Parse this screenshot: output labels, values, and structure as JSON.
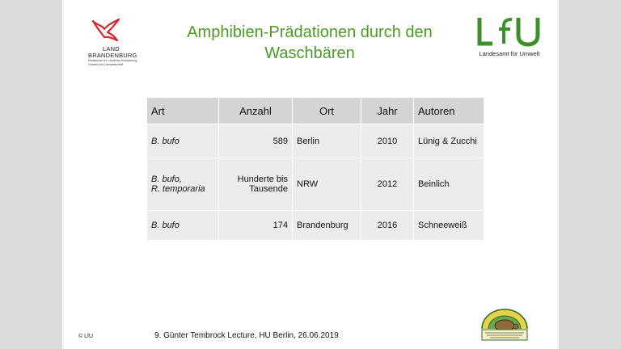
{
  "header": {
    "title_line1": "Amphibien-Prädationen durch den",
    "title_line2": "Waschbären",
    "left_logo": {
      "word1": "LAND",
      "word2": "BRANDENBURG",
      "subtext": "Ministerium für Ländliche Entwicklung, Umwelt und Landwirtschaft"
    },
    "right_logo": {
      "wordmark": "LfU",
      "subtext": "Landesamt für Umwelt"
    }
  },
  "table": {
    "headers": [
      "Art",
      "Anzahl",
      "Ort",
      "Jahr",
      "Autoren"
    ],
    "rows": [
      {
        "art": "B. bufo",
        "art2": "",
        "anzahl": "589",
        "anzahl2": "",
        "ort": "Berlin",
        "jahr": "2010",
        "autoren": "Lünig & Zucchi"
      },
      {
        "art": "B. bufo,",
        "art2": "R. temporaria",
        "anzahl": "Hunderte bis",
        "anzahl2": "Tausende",
        "ort": "NRW",
        "jahr": "2012",
        "autoren": "Beinlich"
      },
      {
        "art": "B. bufo",
        "art2": "",
        "anzahl": "174",
        "anzahl2": "",
        "ort": "Brandenburg",
        "jahr": "2016",
        "autoren": "Schneeweiß"
      }
    ]
  },
  "footer": {
    "copyright": "© LfU",
    "lecture": "9. Günter Tembrock Lecture, HU Berlin, 26.06.2019",
    "station_logo_text": "Naturschutzstation Rhinluch"
  },
  "colors": {
    "title": "#4e9a28",
    "lfu_green": "#3f8f2c",
    "brandenburg_red": "#d6262e",
    "header_cell": "#d4d4d4",
    "body_cell": "#ececec"
  }
}
